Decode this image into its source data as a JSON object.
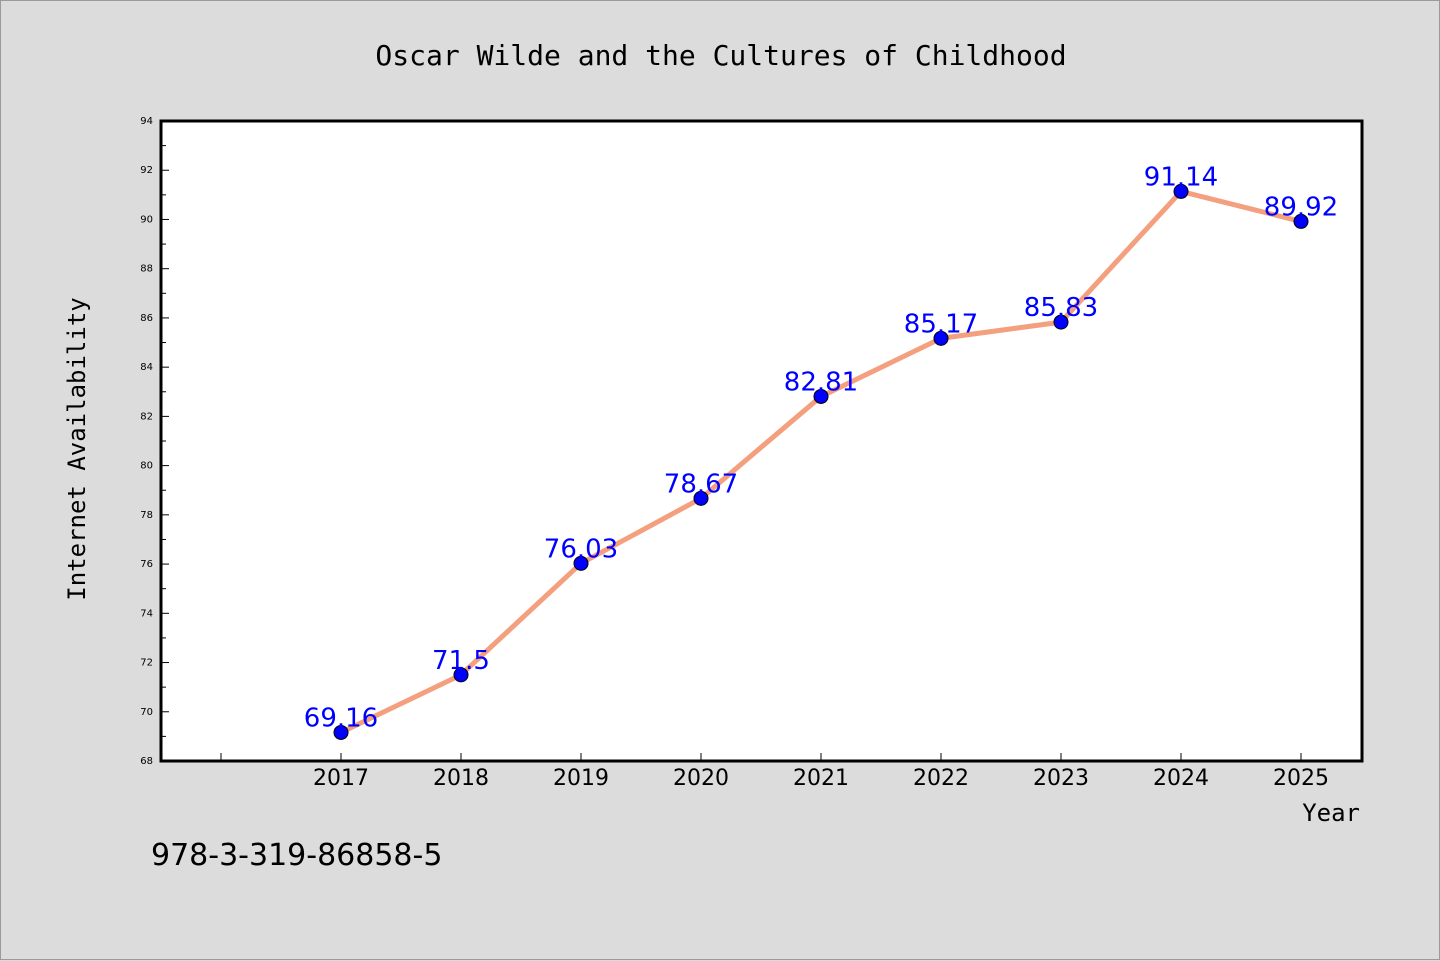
{
  "chart_data": {
    "type": "line",
    "title": "Oscar Wilde and the Cultures of Childhood",
    "xlabel": "Year",
    "ylabel": "Internet Availability",
    "x": [
      "2017",
      "2018",
      "2019",
      "2020",
      "2021",
      "2022",
      "2023",
      "2024",
      "2025"
    ],
    "series": [
      {
        "values": [
          69.16,
          71.5,
          76.03,
          78.67,
          82.81,
          85.17,
          85.83,
          91.14,
          89.92
        ],
        "data_labels": [
          "69.16",
          "71.5",
          "76.03",
          "78.67",
          "82.81",
          "85.17",
          "85.83",
          "91.14",
          "89.92"
        ],
        "line_color": "#f4a07e",
        "marker_color": "#0000ff"
      }
    ],
    "ylim": [
      68,
      94
    ],
    "y_ticks": [
      "68",
      "70",
      "72",
      "74",
      "76",
      "78",
      "80",
      "82",
      "84",
      "86",
      "88",
      "90",
      "92",
      "94"
    ],
    "grid": false,
    "legend": "none",
    "label_color": "#0000ff"
  },
  "footer": {
    "isbn": "978-3-319-86858-5"
  }
}
